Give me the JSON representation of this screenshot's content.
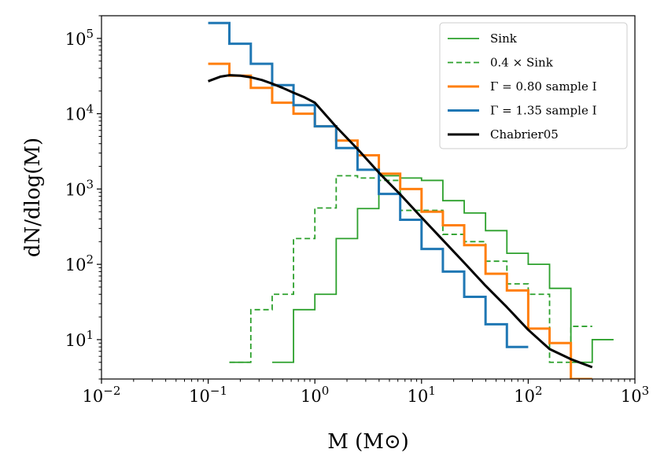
{
  "chart_data": {
    "type": "line",
    "xlabel": "M (M⊙)",
    "ylabel": "dN/dlog(M)",
    "xscale": "log",
    "yscale": "log",
    "xlim": [
      0.01,
      1000
    ],
    "ylim": [
      3,
      200000
    ],
    "x_tick_labels": [
      "10^-2",
      "10^-1",
      "10^0",
      "10^1",
      "10^2",
      "10^3"
    ],
    "y_tick_labels": [
      "10^1",
      "10^2",
      "10^3",
      "10^4",
      "10^5"
    ],
    "grid": false,
    "legend_position": "top-right",
    "series": [
      {
        "name": "Sink",
        "color": "#2ca02c",
        "style": "solid",
        "kind": "step",
        "edges": [
          0.158,
          0.251,
          0.398,
          0.631,
          1.0,
          1.585,
          2.512,
          3.981,
          6.31,
          10.0,
          15.85,
          25.12,
          39.81,
          63.1,
          100.0,
          158.5,
          251.2,
          398.1,
          631.0
        ],
        "values": [
          5,
          null,
          5,
          25,
          40,
          220,
          550,
          1500,
          1400,
          1300,
          700,
          480,
          280,
          140,
          100,
          48,
          5,
          10
        ]
      },
      {
        "name": "0.4 × Sink",
        "color": "#2ca02c",
        "style": "dashed",
        "kind": "step",
        "edges": [
          0.158,
          0.251,
          0.398,
          0.631,
          1.0,
          1.585,
          2.512,
          3.981,
          6.31,
          10.0,
          15.85,
          25.12,
          39.81,
          63.1,
          100.0,
          158.5,
          251.2,
          398.1
        ],
        "values": [
          5,
          25,
          40,
          220,
          560,
          1500,
          1400,
          1300,
          520,
          520,
          250,
          200,
          110,
          55,
          40,
          5,
          15
        ]
      },
      {
        "name": "Γ = 0.80 sample I",
        "color": "#ff7f0e",
        "style": "solid",
        "kind": "step",
        "edges": [
          0.1,
          0.158,
          0.251,
          0.398,
          0.631,
          1.0,
          1.585,
          2.512,
          3.981,
          6.31,
          10.0,
          15.85,
          25.12,
          39.81,
          63.1,
          100.0,
          158.5,
          251.2,
          398.1
        ],
        "values": [
          46000,
          32000,
          22000,
          14000,
          10000,
          6800,
          4400,
          2800,
          1600,
          1000,
          500,
          330,
          180,
          75,
          45,
          14,
          9,
          3
        ]
      },
      {
        "name": "Γ = 1.35 sample I",
        "color": "#1f77b4",
        "style": "solid",
        "kind": "step",
        "edges": [
          0.1,
          0.158,
          0.251,
          0.398,
          0.631,
          1.0,
          1.585,
          2.512,
          3.981,
          6.31,
          10.0,
          15.85,
          25.12,
          39.81,
          63.1,
          100.0
        ],
        "values": [
          160000,
          85000,
          46000,
          24000,
          13000,
          6800,
          3500,
          1800,
          860,
          390,
          160,
          80,
          37,
          16,
          8
        ]
      },
      {
        "name": "Chabrier05",
        "color": "#000000",
        "style": "solid",
        "kind": "curve",
        "x": [
          0.1,
          0.13,
          0.16,
          0.2,
          0.25,
          0.32,
          0.4,
          0.5,
          0.63,
          0.8,
          1.0,
          1.585,
          2.512,
          3.981,
          6.31,
          10.0,
          15.85,
          25.12,
          39.81,
          63.1,
          100.0,
          158.5,
          251.2,
          398.1
        ],
        "y": [
          27000,
          31000,
          32500,
          32000,
          30500,
          28000,
          25000,
          22000,
          19000,
          16500,
          14000,
          6700,
          3400,
          1650,
          850,
          420,
          210,
          105,
          52,
          27,
          13.5,
          7.5,
          5.5,
          4.3
        ]
      }
    ]
  }
}
